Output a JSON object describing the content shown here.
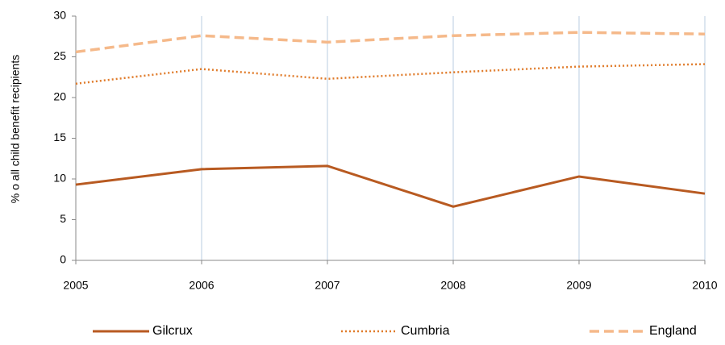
{
  "chart_data": {
    "type": "line",
    "y_label": "% o all child benefit recipients",
    "x": [
      2005,
      2006,
      2007,
      2008,
      2009,
      2010
    ],
    "xlim": [
      2005,
      2010
    ],
    "xticks": [
      2005,
      2006,
      2007,
      2008,
      2009,
      2010
    ],
    "ylim": [
      0,
      30
    ],
    "yticks": [
      0,
      5,
      10,
      15,
      20,
      25,
      30
    ],
    "grid": "x",
    "legend": "bottom",
    "series": [
      {
        "name": "Gilcrux",
        "color": "#b85a21",
        "dash": "solid",
        "values": [
          9.3,
          11.2,
          11.6,
          6.6,
          10.3,
          8.2
        ]
      },
      {
        "name": "Cumbria",
        "color": "#e07b2a",
        "dash": "dotted",
        "values": [
          21.7,
          23.5,
          22.3,
          23.1,
          23.8,
          24.1
        ]
      },
      {
        "name": "England",
        "color": "#f5b98a",
        "dash": "dashed",
        "values": [
          25.6,
          27.6,
          26.8,
          27.6,
          28.0,
          27.8
        ]
      }
    ]
  }
}
